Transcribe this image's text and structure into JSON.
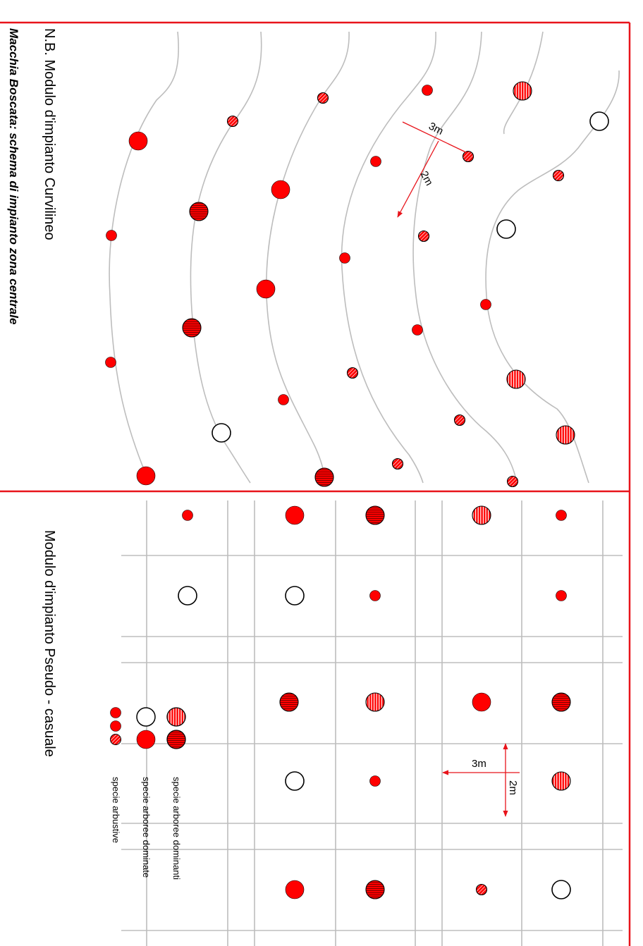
{
  "caption": {
    "title": "Macchia Boscata: schema di impianto zona centrale",
    "curvilinear_label": "N.B. Modulo d'impianto Curvilineo",
    "pseudo_label": "Modulo d'impianto Pseudo - casuale"
  },
  "dimensions": {
    "curvilinear_row_spacing": "3m",
    "curvilinear_plant_spacing": "2m",
    "grid_spacing_a": "3m",
    "grid_spacing_b": "2m"
  },
  "legend": {
    "items": [
      {
        "label": "specie arboree dominanti"
      },
      {
        "label": "specie arboree dominate"
      },
      {
        "label": "specie arbustive"
      }
    ]
  },
  "colors": {
    "frame": "#e8141b",
    "plant_fill": "#ff0000",
    "guide_line": "#bdbdbd",
    "outline": "#000000"
  }
}
